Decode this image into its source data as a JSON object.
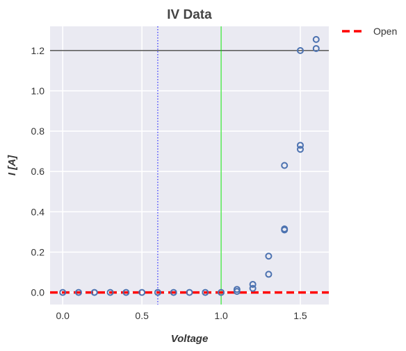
{
  "chart_data": {
    "type": "scatter",
    "title": "IV Data",
    "xlabel": "Voltage",
    "ylabel": "I [A]",
    "xlim": [
      -0.08,
      1.68
    ],
    "ylim": [
      -0.06,
      1.32
    ],
    "xticks": [
      {
        "value": 0.0,
        "label": "0.0"
      },
      {
        "value": 0.5,
        "label": "0.5"
      },
      {
        "value": 1.0,
        "label": "1.0"
      },
      {
        "value": 1.5,
        "label": "1.5"
      }
    ],
    "yticks": [
      {
        "value": 0.0,
        "label": "0.0"
      },
      {
        "value": 0.2,
        "label": "0.2"
      },
      {
        "value": 0.4,
        "label": "0.4"
      },
      {
        "value": 0.6,
        "label": "0.6"
      },
      {
        "value": 0.8,
        "label": "0.8"
      },
      {
        "value": 1.0,
        "label": "1.0"
      },
      {
        "value": 1.2,
        "label": "1.2"
      }
    ],
    "grid": true,
    "background_color": "#eaeaf2",
    "series": [
      {
        "kind": "scatter",
        "color": "#4c72b0",
        "marker": "hollow-circle",
        "points": [
          [
            0.0,
            0.0
          ],
          [
            0.1,
            0.0
          ],
          [
            0.2,
            0.0
          ],
          [
            0.3,
            0.0
          ],
          [
            0.4,
            0.0
          ],
          [
            0.5,
            0.0
          ],
          [
            0.6,
            0.0
          ],
          [
            0.7,
            0.0
          ],
          [
            0.8,
            0.0
          ],
          [
            0.9,
            0.0
          ],
          [
            1.0,
            0.0
          ],
          [
            1.1,
            0.005
          ],
          [
            1.1,
            0.015
          ],
          [
            1.2,
            0.02
          ],
          [
            1.2,
            0.04
          ],
          [
            1.3,
            0.09
          ],
          [
            1.3,
            0.18
          ],
          [
            1.4,
            0.31
          ],
          [
            1.4,
            0.315
          ],
          [
            1.4,
            0.63
          ],
          [
            1.5,
            0.71
          ],
          [
            1.5,
            0.73
          ],
          [
            1.5,
            1.2
          ],
          [
            1.6,
            1.21
          ],
          [
            1.6,
            1.255
          ]
        ]
      },
      {
        "name": "Open",
        "kind": "hline",
        "y": 0.0,
        "color": "#ff0000",
        "style": "dashed"
      }
    ],
    "reference_lines": [
      {
        "orientation": "horizontal",
        "value": 1.2,
        "color": "#000000",
        "style": "solid"
      },
      {
        "orientation": "vertical",
        "value": 1.0,
        "color": "#00dd00",
        "style": "solid"
      },
      {
        "orientation": "vertical",
        "value": 0.6,
        "color": "#3333ff",
        "style": "dotted"
      }
    ],
    "legend": {
      "placement": "outside-top-right",
      "entries": [
        "Open"
      ]
    }
  }
}
